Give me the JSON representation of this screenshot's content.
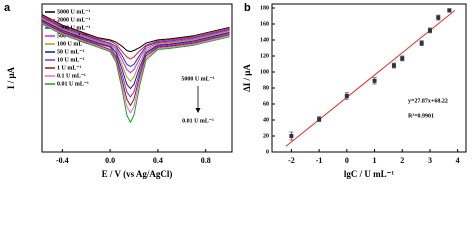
{
  "chart_data": [
    {
      "type": "line",
      "panel_label": "a",
      "xlabel": "E / V (vs Ag/AgCl)",
      "ylabel": "I / μA",
      "x": [
        -0.57,
        -0.4,
        -0.2,
        -0.1,
        0,
        0.05,
        0.1,
        0.14,
        0.17,
        0.2,
        0.25,
        0.3,
        0.4,
        0.5,
        0.7,
        1.0
      ],
      "xlim": [
        -0.57,
        1.02
      ],
      "xticks": [
        -0.4,
        {
          "value": 0,
          "label": "0.0"
        },
        0.4,
        0.8
      ],
      "ylim": [
        -40,
        100
      ],
      "series": [
        {
          "name": "5000 U mL⁻¹",
          "color": "#000000",
          "values": [
            90,
            80,
            72,
            68,
            66,
            64,
            60,
            56,
            55,
            56,
            59,
            63,
            66,
            67,
            70,
            78
          ]
        },
        {
          "name": "2000 U mL⁻¹",
          "color": "#e0201b",
          "values": [
            89,
            79,
            71,
            67,
            65,
            62,
            55,
            50,
            48,
            50,
            56,
            61,
            65,
            66,
            69,
            77
          ]
        },
        {
          "name": "1000 U mL⁻¹",
          "color": "#2038d8",
          "values": [
            88,
            78,
            70,
            66,
            63,
            60,
            51,
            43,
            41,
            43,
            52,
            60,
            64,
            65,
            68,
            76
          ]
        },
        {
          "name": "500 U mL⁻¹",
          "color": "#e020d8",
          "values": [
            87,
            77,
            69,
            65,
            62,
            58,
            47,
            38,
            35,
            38,
            49,
            58,
            63,
            64,
            67,
            75
          ]
        },
        {
          "name": "100 U mL⁻¹",
          "color": "#a8a020",
          "values": [
            86,
            76,
            68,
            64,
            61,
            56,
            42,
            31,
            27,
            31,
            45,
            56,
            62,
            63,
            66,
            74
          ]
        },
        {
          "name": "50 U mL⁻¹",
          "color": "#1a1a80",
          "values": [
            85,
            75,
            67,
            63,
            60,
            54,
            38,
            24,
            20,
            24,
            41,
            54,
            61,
            62,
            65,
            73
          ]
        },
        {
          "name": "10 U mL⁻¹",
          "color": "#8a2be2",
          "values": [
            84,
            74,
            66,
            62,
            59,
            51,
            33,
            17,
            12,
            17,
            37,
            53,
            60,
            61,
            64,
            72
          ]
        },
        {
          "name": "1 U mL⁻¹",
          "color": "#8b1a1a",
          "values": [
            83,
            73,
            65,
            61,
            57,
            49,
            28,
            10,
            4,
            10,
            33,
            51,
            59,
            60,
            63,
            71
          ]
        },
        {
          "name": "0.1 U mL⁻¹",
          "color": "#e070c8",
          "values": [
            82,
            72,
            64,
            60,
            56,
            47,
            24,
            3,
            -3,
            3,
            29,
            49,
            58,
            59,
            62,
            70
          ]
        },
        {
          "name": "0.01 U mL⁻¹",
          "color": "#20a020",
          "values": [
            81,
            71,
            63,
            59,
            55,
            45,
            19,
            -5,
            -12,
            -5,
            24,
            47,
            57,
            58,
            61,
            69
          ]
        }
      ],
      "annotations": [
        "5000 U mL⁻¹",
        "0.01 U mL⁻¹"
      ]
    },
    {
      "type": "scatter",
      "panel_label": "b",
      "xlabel": "lgC / U mL⁻¹",
      "ylabel": "ΔI / μA",
      "x": [
        -2,
        -1,
        0,
        1,
        1.7,
        2,
        2.7,
        3,
        3.3,
        3.7
      ],
      "values": [
        20,
        41,
        70,
        89,
        108,
        117,
        136,
        152,
        168,
        177
      ],
      "errors": [
        5,
        3,
        4,
        4,
        3,
        3,
        3,
        3,
        3,
        2
      ],
      "color": "#303040",
      "fit": {
        "x": [
          -2.2,
          3.9
        ],
        "values": [
          7,
          177
        ],
        "color": "#e0302a"
      },
      "equation": "y=27.87x+68.22",
      "r_squared": "R²=0.9901",
      "xlim": [
        -2.7,
        4.3
      ],
      "xticks": [
        -2,
        -1,
        0,
        1,
        2,
        3,
        4
      ],
      "ylim": [
        0,
        185
      ],
      "yticks": [
        0,
        20,
        40,
        60,
        80,
        100,
        120,
        140,
        160,
        180
      ]
    }
  ]
}
